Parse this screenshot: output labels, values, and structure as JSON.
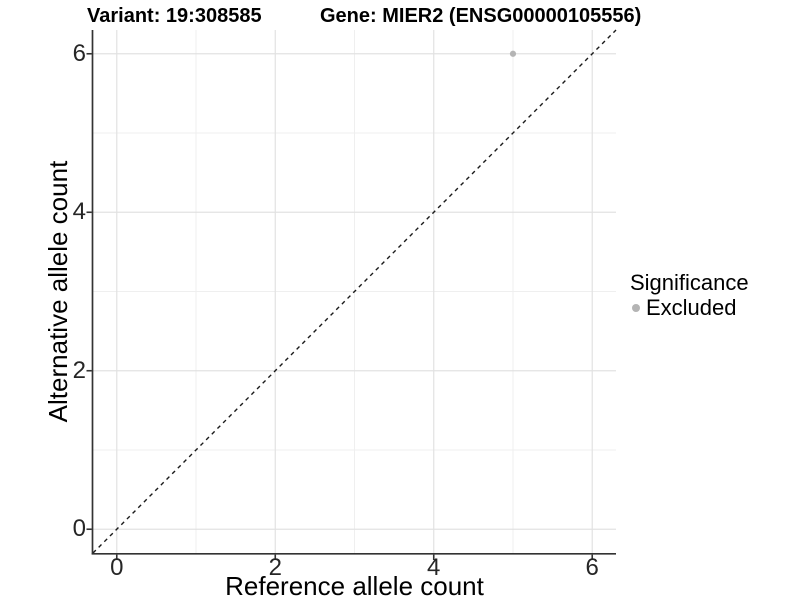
{
  "header": {
    "variant_title": "Variant: 19:308585",
    "gene_title": "Gene: MIER2 (ENSG00000105556)"
  },
  "legend": {
    "title": "Significance",
    "position": "right",
    "items": [
      {
        "label": "Excluded",
        "color": "#b4b4b4"
      }
    ]
  },
  "colors": {
    "background": "#ffffff",
    "grid_major": "#e2e2e2",
    "grid_minor": "#efefef",
    "axis_line": "#333333",
    "tick_mark": "#333333",
    "identity_line": "#1a1a1a",
    "point_excluded": "#b4b4b4"
  },
  "chart_data": {
    "type": "scatter",
    "title": "Variant: 19:308585   Gene: MIER2 (ENSG00000105556)",
    "xlabel": "Reference allele count",
    "ylabel": "Alternative allele count",
    "xlim": [
      -0.3,
      6.3
    ],
    "ylim": [
      -0.3,
      6.3
    ],
    "xticks": [
      0,
      2,
      4,
      6
    ],
    "yticks": [
      0,
      2,
      4,
      6
    ],
    "xminor": [
      1,
      3,
      5
    ],
    "yminor": [
      1,
      3,
      5
    ],
    "grid": "major+minor",
    "legend_position": "right",
    "series": [
      {
        "name": "Excluded",
        "color": "#b4b4b4",
        "points": [
          [
            5,
            6
          ]
        ]
      }
    ],
    "reference_line": {
      "type": "identity",
      "slope": 1,
      "intercept": 0,
      "style": "dashed",
      "color": "#1a1a1a"
    }
  }
}
